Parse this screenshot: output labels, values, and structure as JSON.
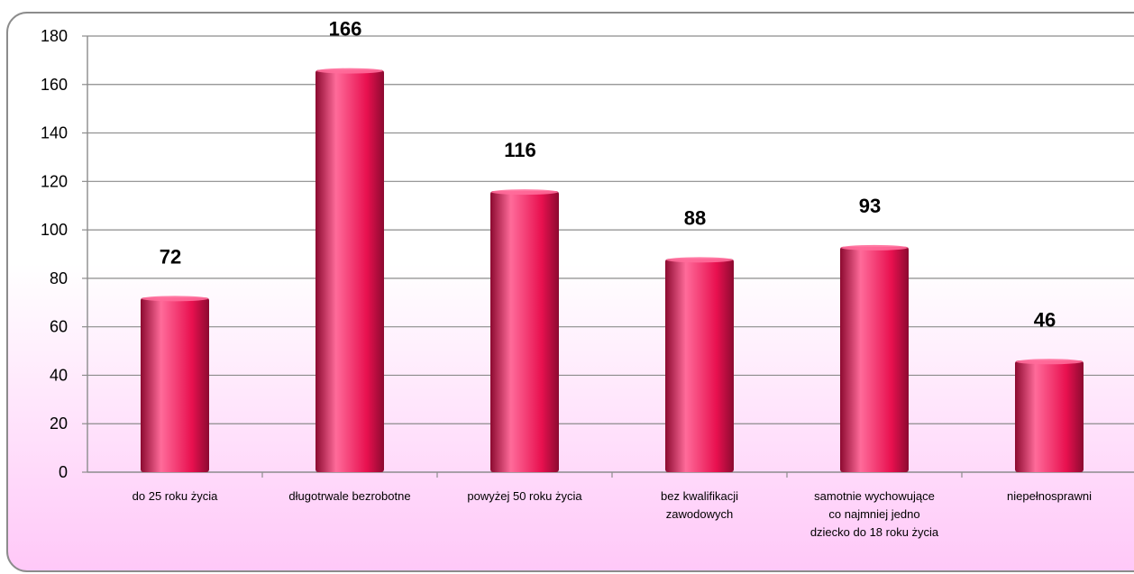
{
  "chart_data": {
    "type": "bar",
    "title": "",
    "xlabel": "",
    "ylabel": "",
    "ylim": [
      0,
      180
    ],
    "ytick_step": 20,
    "grid": true,
    "legend": "none",
    "categories": [
      [
        "do 25 roku życia"
      ],
      [
        "długotrwale bezrobotne"
      ],
      [
        "powyżej 50 roku życia"
      ],
      [
        "bez kwalifikacji",
        "zawodowych"
      ],
      [
        "samotnie wychowujące",
        "co najmniej jedno",
        "dziecko do 18 roku życia"
      ],
      [
        "niepełnosprawni"
      ]
    ],
    "values": [
      72,
      166,
      116,
      88,
      93,
      46
    ],
    "colors": {
      "bar_light": "#ff6b9a",
      "bar_main": "#e8104f",
      "bar_dark": "#8c0a30",
      "gradient_top": "#ffffff",
      "gradient_bottom": "#ffc8f8",
      "gridline": "#8c8c8c",
      "frame": "#8c8c8c"
    }
  }
}
